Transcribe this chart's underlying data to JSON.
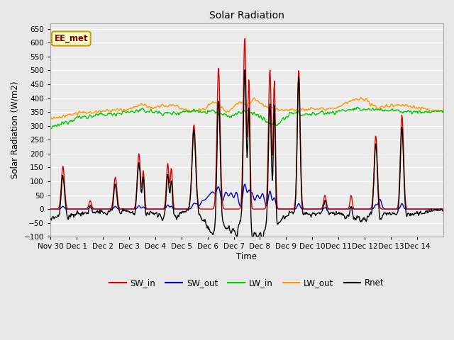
{
  "title": "Solar Radiation",
  "ylabel": "Solar Radiation (W/m2)",
  "xlabel": "Time",
  "ylim": [
    -100,
    670
  ],
  "yticks": [
    -100,
    -50,
    0,
    50,
    100,
    150,
    200,
    250,
    300,
    350,
    400,
    450,
    500,
    550,
    600,
    650
  ],
  "xtick_labels": [
    "Nov 30",
    "Dec 1",
    "Dec 2",
    "Dec 3",
    "Dec 4",
    "Dec 5",
    "Dec 6",
    "Dec 7",
    "Dec 8",
    "Dec 9",
    "Dec 10",
    "Dec 11",
    "Dec 12",
    "Dec 13",
    "Dec 14"
  ],
  "annotation_text": "EE_met",
  "annotation_bg": "#ffffcc",
  "annotation_border": "#cc9900",
  "colors": {
    "SW_in": "#dd0000",
    "SW_out": "#0000cc",
    "LW_in": "#00cc00",
    "LW_out": "#ff9900",
    "Rnet": "#000000"
  },
  "bg_color": "#e8e8e8",
  "plot_bg_color": "#ebebeb",
  "linewidth": 1.0
}
